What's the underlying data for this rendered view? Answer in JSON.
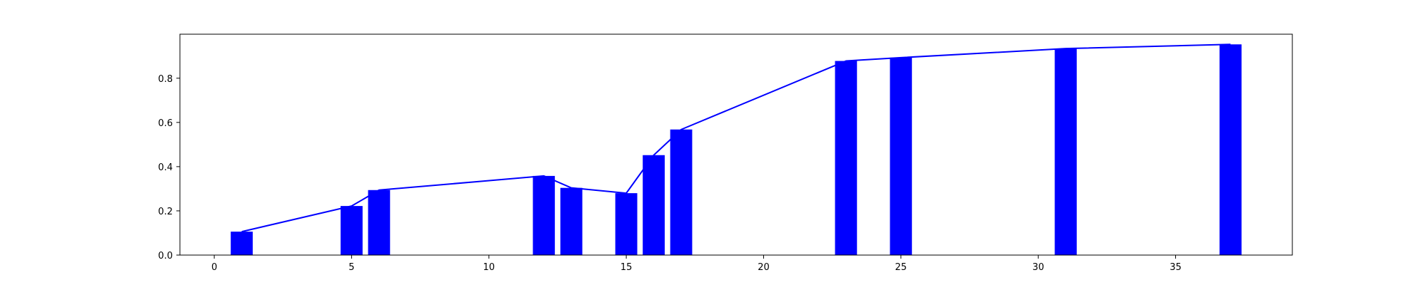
{
  "colors": {
    "bar": "#0000ff",
    "line": "#0000ff",
    "axis": "#000000",
    "background": "#ffffff"
  },
  "chart_data": {
    "type": "bar",
    "title": "",
    "xlabel": "",
    "ylabel": "",
    "grid": false,
    "legend": "none",
    "xlim": [
      -1.25,
      39.25
    ],
    "ylim": [
      0,
      0.999
    ],
    "x_ticks": [
      0,
      5,
      10,
      15,
      20,
      25,
      30,
      35
    ],
    "y_ticks": [
      0.0,
      0.2,
      0.4,
      0.6,
      0.8
    ],
    "bar_width": 0.8,
    "series": [
      {
        "type": "bar",
        "color": "#0000ff",
        "x": [
          1,
          5,
          6,
          12,
          13,
          15,
          16,
          17,
          23,
          25,
          31,
          37
        ],
        "values": [
          0.106,
          0.222,
          0.294,
          0.358,
          0.304,
          0.28,
          0.452,
          0.568,
          0.878,
          0.893,
          0.934,
          0.953
        ]
      },
      {
        "type": "line",
        "color": "#0000ff",
        "x": [
          1,
          5,
          6,
          12,
          13,
          15,
          16,
          17,
          23,
          25,
          31,
          37
        ],
        "values": [
          0.106,
          0.222,
          0.294,
          0.358,
          0.304,
          0.28,
          0.452,
          0.568,
          0.878,
          0.893,
          0.934,
          0.953
        ]
      }
    ]
  }
}
